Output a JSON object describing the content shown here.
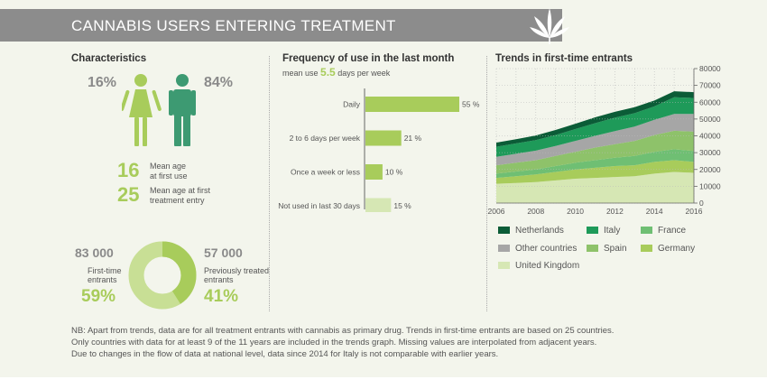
{
  "header": {
    "title": "CANNABIS USERS ENTERING TREATMENT"
  },
  "characteristics": {
    "title": "Characteristics",
    "female_pct": "16%",
    "male_pct": "84%",
    "mean_age_first_use": "16",
    "mean_age_first_use_label_1": "Mean age",
    "mean_age_first_use_label_2": "at first use",
    "mean_age_treatment": "25",
    "mean_age_treatment_label_1": "Mean age at first",
    "mean_age_treatment_label_2": "treatment entry",
    "first_time_count": "83 000",
    "first_time_label_1": "First-time",
    "first_time_label_2": "entrants",
    "first_time_pct": "59%",
    "first_time_fraction": 0.59,
    "previously_count": "57 000",
    "previously_label_1": "Previously treated",
    "previously_label_2": "entrants",
    "previously_pct": "41%",
    "colors": {
      "female": "#a8cc5b",
      "male": "#3d9a72",
      "ring_first": "#c8df95",
      "ring_prev": "#a8cc5b"
    }
  },
  "frequency": {
    "title": "Frequency of use in the last month",
    "mean_prefix": "mean use",
    "mean_value": "5.5",
    "mean_suffix": "days per week"
  },
  "trends": {
    "title": "Trends in first-time entrants"
  },
  "notes": [
    "NB: Apart from trends, data are for all treatment entrants with cannabis as primary drug. Trends in first-time entrants are based on 25 countries.",
    "Only countries with data for at least 9 of the 11 years are included in the trends graph. Missing values are interpolated from adjacent years.",
    "Due to changes in the flow of data at national level, data since 2014 for Italy is not comparable with earlier years."
  ],
  "chart_data": [
    {
      "type": "bar",
      "orientation": "horizontal",
      "title": "Frequency of use in the last month",
      "categories": [
        "Daily",
        "2 to 6 days per week",
        "Once a week or less",
        "Not used in last 30 days"
      ],
      "values": [
        55,
        21,
        10,
        15
      ],
      "labels": [
        "55 %",
        "21 %",
        "10 %",
        "15 %"
      ],
      "colors": [
        "#a8cc5b",
        "#a8cc5b",
        "#a8cc5b",
        "#d6e7b4"
      ]
    },
    {
      "type": "area",
      "stacked": true,
      "title": "Trends in first-time entrants",
      "x": [
        2006,
        2007,
        2008,
        2009,
        2010,
        2011,
        2012,
        2013,
        2014,
        2015,
        2016
      ],
      "xticks": [
        "2006",
        "2008",
        "2010",
        "2012",
        "2014",
        "2016"
      ],
      "xlim": [
        2006,
        2016
      ],
      "ylim": [
        0,
        80000
      ],
      "yticks": [
        "0",
        "10000",
        "20000",
        "30000",
        "40000",
        "50000",
        "60000",
        "70000",
        "80000"
      ],
      "yaxis_side": "right",
      "grid": true,
      "legend_position": "bottom",
      "series": [
        {
          "name": "United Kingdom",
          "color": "#d6e7b4",
          "values": [
            11500,
            12000,
            12500,
            13500,
            14500,
            15000,
            15500,
            16000,
            17500,
            18500,
            18000
          ]
        },
        {
          "name": "Germany",
          "color": "#a8cc5b",
          "values": [
            3500,
            4000,
            4500,
            5000,
            5500,
            6000,
            6500,
            6500,
            7000,
            7000,
            6500
          ]
        },
        {
          "name": "France",
          "color": "#6fbf73",
          "values": [
            2500,
            2800,
            3000,
            3500,
            4000,
            4500,
            5000,
            5500,
            6000,
            6500,
            6500
          ]
        },
        {
          "name": "Spain",
          "color": "#8ec26a",
          "values": [
            5000,
            5200,
            5500,
            6000,
            6500,
            7500,
            8000,
            9000,
            10000,
            11000,
            11500
          ]
        },
        {
          "name": "Other countries",
          "color": "#a6a6a6",
          "values": [
            5000,
            5300,
            5700,
            6000,
            6500,
            7000,
            7800,
            8500,
            9000,
            10000,
            10500
          ]
        },
        {
          "name": "Italy",
          "color": "#1e9a59",
          "values": [
            6000,
            6200,
            6300,
            6500,
            7000,
            7500,
            8000,
            8000,
            8000,
            10000,
            9500
          ]
        },
        {
          "name": "Netherlands",
          "color": "#0b5c37",
          "values": [
            2500,
            2500,
            2700,
            3000,
            3200,
            3500,
            3500,
            3500,
            3500,
            3500,
            3500
          ]
        }
      ]
    }
  ]
}
